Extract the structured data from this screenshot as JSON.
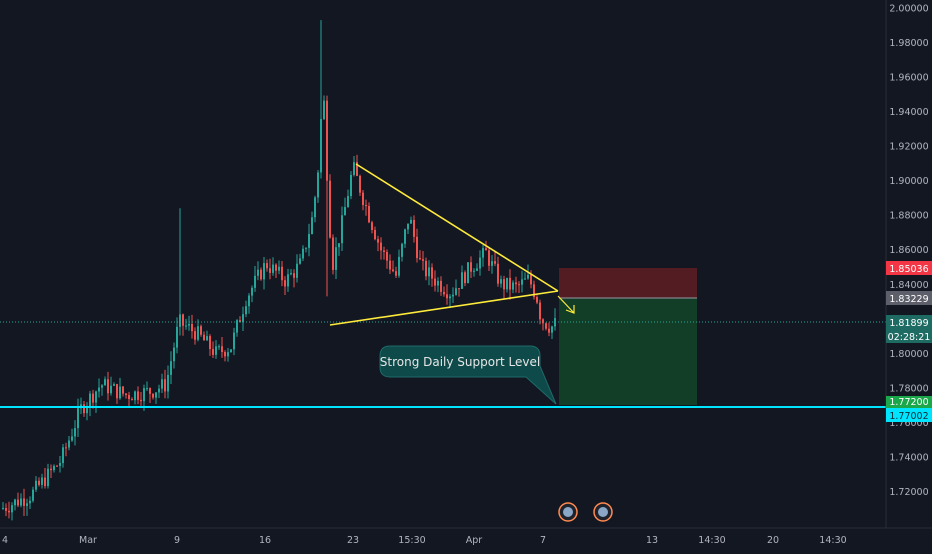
{
  "chart_data": {
    "type": "candlestick",
    "price_axis": {
      "range": [
        1.7,
        2.0
      ],
      "ticks": [
        "2.00000",
        "1.98000",
        "1.96000",
        "1.94000",
        "1.92000",
        "1.90000",
        "1.88000",
        "1.86000",
        "1.84000",
        "1.82000",
        "1.80000",
        "1.78000",
        "1.76000",
        "1.74000",
        "1.72000"
      ],
      "tick_values": [
        2.0,
        1.98,
        1.96,
        1.94,
        1.92,
        1.9,
        1.88,
        1.86,
        1.84,
        1.82,
        1.8,
        1.78,
        1.76,
        1.74,
        1.72
      ]
    },
    "time_axis": {
      "labels": [
        "4",
        "Mar",
        "9",
        "16",
        "23",
        "15:30",
        "Apr",
        "7",
        "13",
        "14:30",
        "20",
        "14:30"
      ]
    },
    "price_labels": {
      "stop_loss": "1.85036",
      "entry": "1.83229",
      "last_price": "1.81899",
      "countdown": "02:28:21",
      "support_upper": "1.77200",
      "support_lower": "1.77002"
    },
    "annotation": "Strong Daily Support Level",
    "support_level": 1.771,
    "triangle": {
      "apex": [
        "Apr 8",
        1.837
      ],
      "upper_start": [
        "Mar 23",
        1.91
      ],
      "lower_start": [
        "Mar 20",
        1.816
      ]
    },
    "position": {
      "entry": 1.8323,
      "stop": 1.8504,
      "target": 1.7715
    },
    "colors": {
      "background": "#131722",
      "up": "#26a69a",
      "down": "#ef5350",
      "triangle": "#ffeb3b",
      "support": "#00e5ff",
      "stop_zone": "#5b1d24",
      "target_zone": "#123f27",
      "last_price_line": "#26a69a",
      "callout": "#0f4a4a"
    }
  }
}
